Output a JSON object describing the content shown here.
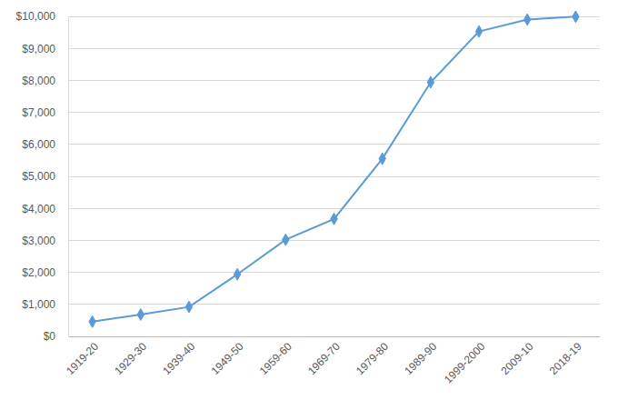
{
  "chart_data": {
    "type": "line",
    "categories": [
      "1919-20",
      "1929-30",
      "1939-40",
      "1949-50",
      "1959-60",
      "1969-70",
      "1979-80",
      "1989-90",
      "1999-2000",
      "2009-10",
      "2018-19"
    ],
    "values": [
      460,
      680,
      920,
      1940,
      3020,
      3670,
      5550,
      7940,
      9530,
      9900,
      9990
    ],
    "color": "#5b9bd5",
    "marker": "diamond",
    "line_style": "solid",
    "ylim": [
      0,
      10000
    ],
    "yticks": [
      {
        "value": 0,
        "label": "$0"
      },
      {
        "value": 1000,
        "label": "$1,000"
      },
      {
        "value": 2000,
        "label": "$2,000"
      },
      {
        "value": 3000,
        "label": "$3,000"
      },
      {
        "value": 4000,
        "label": "$4,000"
      },
      {
        "value": 5000,
        "label": "$5,000"
      },
      {
        "value": 6000,
        "label": "$6,000"
      },
      {
        "value": 7000,
        "label": "$7,000"
      },
      {
        "value": 8000,
        "label": "$8,000"
      },
      {
        "value": 9000,
        "label": "$9,000"
      },
      {
        "value": 10000,
        "label": "$10,000"
      }
    ],
    "grid": true
  }
}
